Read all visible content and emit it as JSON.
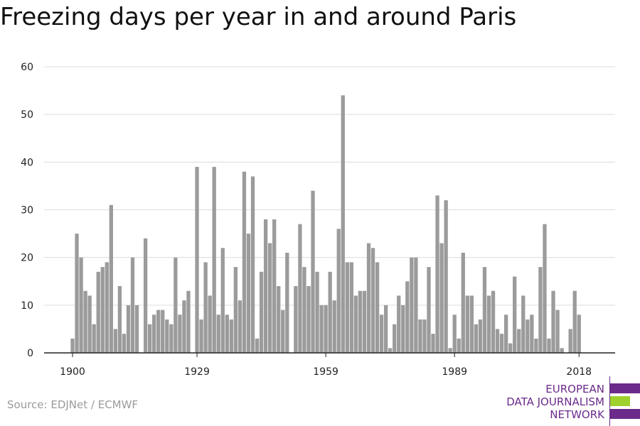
{
  "title": "Freezing days per year in and around Paris",
  "source": "Source: EDJNet / ECMWF",
  "logo": {
    "lines": [
      "EUROPEAN",
      "DATA JOURNALISM",
      "NETWORK"
    ],
    "colors": {
      "purple": "#6a2b8a",
      "green": "#9ed12c"
    }
  },
  "colors": {
    "bar": "#9b9b9b",
    "grid": "#dcdcdc",
    "axis": "#222222"
  },
  "chart_data": {
    "type": "bar",
    "title": "Freezing days per year in and around Paris",
    "xlabel": "",
    "ylabel": "",
    "ylim": [
      0,
      60
    ],
    "yticks": [
      0,
      10,
      20,
      30,
      40,
      50,
      60
    ],
    "xticks": [
      1900,
      1929,
      1959,
      1989,
      2018
    ],
    "grid": true,
    "years": [
      1900,
      1901,
      1902,
      1903,
      1904,
      1905,
      1906,
      1907,
      1908,
      1909,
      1910,
      1911,
      1912,
      1913,
      1914,
      1915,
      1916,
      1917,
      1918,
      1919,
      1920,
      1921,
      1922,
      1923,
      1924,
      1925,
      1926,
      1927,
      1928,
      1929,
      1930,
      1931,
      1932,
      1933,
      1934,
      1935,
      1936,
      1937,
      1938,
      1939,
      1940,
      1941,
      1942,
      1943,
      1944,
      1945,
      1946,
      1947,
      1948,
      1949,
      1950,
      1951,
      1952,
      1953,
      1954,
      1955,
      1956,
      1957,
      1958,
      1959,
      1960,
      1961,
      1962,
      1963,
      1964,
      1965,
      1966,
      1967,
      1968,
      1969,
      1970,
      1971,
      1972,
      1973,
      1974,
      1975,
      1976,
      1977,
      1978,
      1979,
      1980,
      1981,
      1982,
      1983,
      1984,
      1985,
      1986,
      1987,
      1988,
      1989,
      1990,
      1991,
      1992,
      1993,
      1994,
      1995,
      1996,
      1997,
      1998,
      1999,
      2000,
      2001,
      2002,
      2003,
      2004,
      2005,
      2006,
      2007,
      2008,
      2009,
      2010,
      2011,
      2012,
      2013,
      2014,
      2015,
      2016,
      2017,
      2018
    ],
    "values": [
      3,
      25,
      20,
      13,
      12,
      6,
      17,
      18,
      19,
      31,
      5,
      14,
      4,
      10,
      20,
      10,
      0,
      24,
      6,
      8,
      9,
      9,
      7,
      6,
      20,
      8,
      11,
      13,
      0,
      39,
      7,
      19,
      12,
      39,
      8,
      22,
      8,
      7,
      18,
      11,
      38,
      25,
      37,
      3,
      17,
      28,
      23,
      28,
      14,
      9,
      21,
      0,
      14,
      27,
      18,
      14,
      34,
      17,
      10,
      10,
      17,
      11,
      26,
      54,
      19,
      19,
      12,
      13,
      13,
      23,
      22,
      19,
      8,
      10,
      1,
      6,
      12,
      10,
      15,
      20,
      20,
      7,
      7,
      18,
      4,
      33,
      23,
      32,
      1,
      8,
      3,
      21,
      12,
      12,
      6,
      7,
      18,
      12,
      13,
      5,
      4,
      8,
      2,
      16,
      5,
      12,
      7,
      8,
      3,
      18,
      27,
      3,
      13,
      9,
      1,
      0,
      5,
      13,
      8
    ]
  }
}
